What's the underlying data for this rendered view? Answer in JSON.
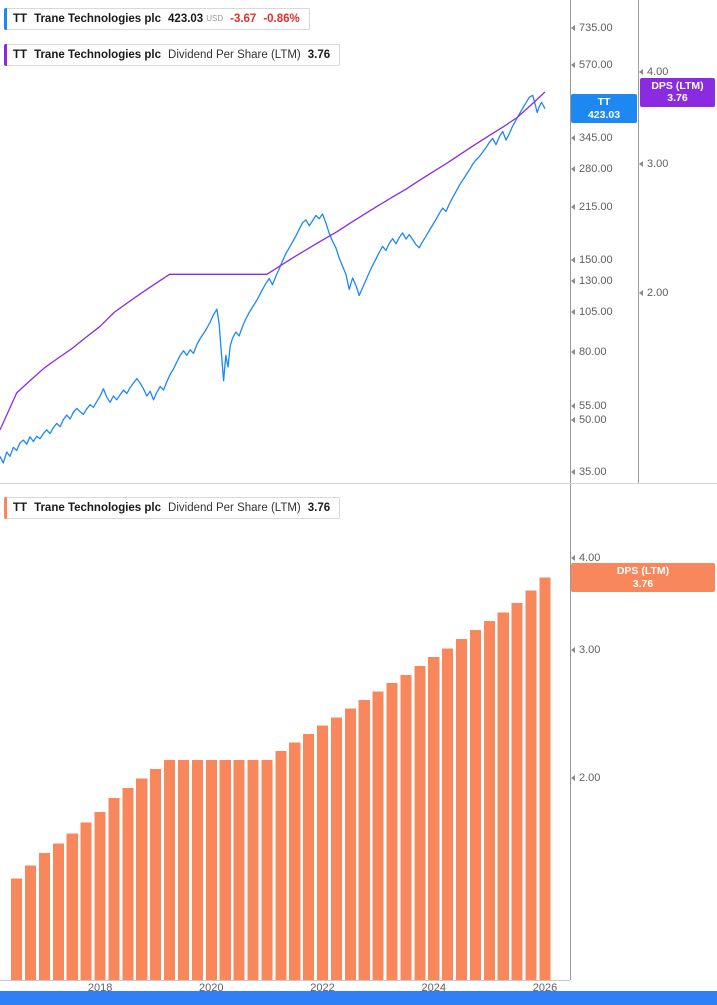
{
  "colors": {
    "price_blue": "#1E88F2",
    "dps_purple": "#8A2BE2",
    "dps_orange": "#F8875C",
    "change_red": "#E0302E",
    "timebar_blue": "#2F80F6",
    "axis_text_gray": "#5F5F5F"
  },
  "top_panel": {
    "legend_price": {
      "ticker": "TT",
      "name": "Trane Technologies plc",
      "price": "423.03",
      "currency": "USD",
      "change": "-3.67",
      "change_pct": "-0.86%"
    },
    "legend_dps": {
      "ticker": "TT",
      "name": "Trane Technologies plc",
      "metric": "Dividend Per Share (LTM)",
      "value": "3.76"
    },
    "price_badge": {
      "ticker": "TT",
      "value": "423.03"
    },
    "dps_badge": {
      "label": "DPS (LTM)",
      "value": "3.76"
    }
  },
  "bottom_panel": {
    "legend": {
      "ticker": "TT",
      "name": "Trane Technologies plc",
      "metric": "Dividend Per Share (LTM)",
      "value": "3.76"
    },
    "badge": {
      "label": "DPS (LTM)",
      "value": "3.76"
    }
  },
  "chart_data": [
    {
      "type": "line",
      "title": "TT Trane Technologies plc price with Dividend Per Share (LTM) overlay",
      "x_range": [
        2016.2,
        2026.45
      ],
      "y_scale": "log",
      "grid": false,
      "legend_position": "top-left",
      "last_values": {
        "price": 423.03,
        "dps": 3.76
      },
      "series": [
        {
          "id": "price",
          "name": "TT Trane Technologies plc Price (USD)",
          "color": "#1E88F2",
          "axis": {
            "min": 32.5,
            "max": 891,
            "ticks": [
              735,
              570,
              345,
              280,
              215,
              150,
              130,
              105,
              80,
              55,
              50,
              35
            ]
          },
          "points": [
            [
              2016.2,
              39.0
            ],
            [
              2016.26,
              37.3
            ],
            [
              2016.32,
              40.2
            ],
            [
              2016.38,
              39.0
            ],
            [
              2016.44,
              41.5
            ],
            [
              2016.5,
              40.6
            ],
            [
              2016.56,
              42.8
            ],
            [
              2016.62,
              43.6
            ],
            [
              2016.68,
              42.4
            ],
            [
              2016.74,
              44.6
            ],
            [
              2016.8,
              43.2
            ],
            [
              2016.86,
              44.8
            ],
            [
              2016.92,
              44.0
            ],
            [
              2016.98,
              45.6
            ],
            [
              2017.04,
              46.8
            ],
            [
              2017.1,
              45.6
            ],
            [
              2017.16,
              47.5
            ],
            [
              2017.22,
              48.9
            ],
            [
              2017.28,
              47.8
            ],
            [
              2017.34,
              50.2
            ],
            [
              2017.4,
              51.8
            ],
            [
              2017.46,
              50.4
            ],
            [
              2017.52,
              52.8
            ],
            [
              2017.58,
              54.2
            ],
            [
              2017.64,
              53.0
            ],
            [
              2017.7,
              52.0
            ],
            [
              2017.76,
              54.0
            ],
            [
              2017.82,
              55.6
            ],
            [
              2017.88,
              54.6
            ],
            [
              2017.94,
              56.8
            ],
            [
              2018.0,
              59.0
            ],
            [
              2018.06,
              62.0
            ],
            [
              2018.12,
              58.5
            ],
            [
              2018.18,
              56.5
            ],
            [
              2018.24,
              59.0
            ],
            [
              2018.3,
              57.5
            ],
            [
              2018.36,
              59.5
            ],
            [
              2018.42,
              61.5
            ],
            [
              2018.48,
              60.0
            ],
            [
              2018.54,
              62.5
            ],
            [
              2018.6,
              64.5
            ],
            [
              2018.66,
              66.5
            ],
            [
              2018.72,
              64.5
            ],
            [
              2018.78,
              62.0
            ],
            [
              2018.84,
              59.0
            ],
            [
              2018.9,
              61.0
            ],
            [
              2018.96,
              57.5
            ],
            [
              2019.02,
              60.5
            ],
            [
              2019.08,
              63.0
            ],
            [
              2019.14,
              61.5
            ],
            [
              2019.2,
              65.0
            ],
            [
              2019.26,
              68.5
            ],
            [
              2019.32,
              71.0
            ],
            [
              2019.38,
              74.5
            ],
            [
              2019.44,
              78.0
            ],
            [
              2019.5,
              80.5
            ],
            [
              2019.56,
              78.0
            ],
            [
              2019.62,
              81.0
            ],
            [
              2019.68,
              79.0
            ],
            [
              2019.74,
              84.0
            ],
            [
              2019.8,
              87.5
            ],
            [
              2019.86,
              90.5
            ],
            [
              2019.92,
              94.0
            ],
            [
              2019.98,
              98.0
            ],
            [
              2020.04,
              103.0
            ],
            [
              2020.1,
              107.0
            ],
            [
              2020.14,
              97.0
            ],
            [
              2020.18,
              80.0
            ],
            [
              2020.22,
              65.5
            ],
            [
              2020.26,
              78.0
            ],
            [
              2020.3,
              72.0
            ],
            [
              2020.34,
              83.0
            ],
            [
              2020.38,
              87.5
            ],
            [
              2020.44,
              91.5
            ],
            [
              2020.5,
              89.0
            ],
            [
              2020.56,
              95.0
            ],
            [
              2020.62,
              100.0
            ],
            [
              2020.68,
              104.5
            ],
            [
              2020.74,
              108.5
            ],
            [
              2020.8,
              112.5
            ],
            [
              2020.86,
              117.0
            ],
            [
              2020.92,
              122.5
            ],
            [
              2020.98,
              127.5
            ],
            [
              2021.04,
              132.0
            ],
            [
              2021.1,
              126.5
            ],
            [
              2021.16,
              134.0
            ],
            [
              2021.22,
              141.0
            ],
            [
              2021.28,
              149.0
            ],
            [
              2021.34,
              156.5
            ],
            [
              2021.4,
              163.0
            ],
            [
              2021.46,
              169.5
            ],
            [
              2021.52,
              176.5
            ],
            [
              2021.58,
              185.0
            ],
            [
              2021.64,
              193.5
            ],
            [
              2021.7,
              197.5
            ],
            [
              2021.76,
              189.5
            ],
            [
              2021.82,
              196.0
            ],
            [
              2021.88,
              203.5
            ],
            [
              2021.94,
              199.0
            ],
            [
              2022.0,
              205.5
            ],
            [
              2022.06,
              193.0
            ],
            [
              2022.12,
              180.0
            ],
            [
              2022.18,
              170.5
            ],
            [
              2022.24,
              163.0
            ],
            [
              2022.3,
              152.0
            ],
            [
              2022.36,
              143.5
            ],
            [
              2022.42,
              136.0
            ],
            [
              2022.48,
              122.5
            ],
            [
              2022.54,
              132.5
            ],
            [
              2022.6,
              126.0
            ],
            [
              2022.66,
              117.5
            ],
            [
              2022.72,
              124.0
            ],
            [
              2022.78,
              130.5
            ],
            [
              2022.84,
              137.5
            ],
            [
              2022.9,
              144.5
            ],
            [
              2022.96,
              151.0
            ],
            [
              2023.02,
              158.0
            ],
            [
              2023.08,
              164.5
            ],
            [
              2023.14,
              160.0
            ],
            [
              2023.2,
              168.0
            ],
            [
              2023.26,
              173.5
            ],
            [
              2023.32,
              167.5
            ],
            [
              2023.38,
              175.0
            ],
            [
              2023.44,
              180.5
            ],
            [
              2023.5,
              173.0
            ],
            [
              2023.56,
              178.5
            ],
            [
              2023.62,
              172.5
            ],
            [
              2023.68,
              166.5
            ],
            [
              2023.74,
              163.0
            ],
            [
              2023.8,
              170.0
            ],
            [
              2023.86,
              176.5
            ],
            [
              2023.92,
              183.5
            ],
            [
              2023.98,
              190.5
            ],
            [
              2024.04,
              198.0
            ],
            [
              2024.1,
              206.5
            ],
            [
              2024.16,
              214.0
            ],
            [
              2024.22,
              209.0
            ],
            [
              2024.28,
              220.0
            ],
            [
              2024.34,
              230.0
            ],
            [
              2024.4,
              239.5
            ],
            [
              2024.46,
              250.0
            ],
            [
              2024.52,
              259.0
            ],
            [
              2024.58,
              268.5
            ],
            [
              2024.64,
              278.0
            ],
            [
              2024.7,
              289.0
            ],
            [
              2024.76,
              297.5
            ],
            [
              2024.82,
              305.0
            ],
            [
              2024.88,
              314.0
            ],
            [
              2024.94,
              324.0
            ],
            [
              2025.0,
              336.0
            ],
            [
              2025.06,
              345.0
            ],
            [
              2025.12,
              330.5
            ],
            [
              2025.18,
              349.0
            ],
            [
              2025.24,
              362.0
            ],
            [
              2025.3,
              341.0
            ],
            [
              2025.36,
              357.0
            ],
            [
              2025.42,
              376.0
            ],
            [
              2025.48,
              392.0
            ],
            [
              2025.54,
              408.0
            ],
            [
              2025.6,
              424.0
            ],
            [
              2025.66,
              441.0
            ],
            [
              2025.72,
              457.5
            ],
            [
              2025.78,
              463.5
            ],
            [
              2025.82,
              438.0
            ],
            [
              2025.86,
              412.0
            ],
            [
              2025.9,
              430.0
            ],
            [
              2025.94,
              441.5
            ],
            [
              2026.0,
              423.03
            ]
          ]
        },
        {
          "id": "dps",
          "name": "Dividend Per Share (LTM)",
          "color": "#8A2BE2",
          "axis": {
            "min": 1.1,
            "max": 5.02,
            "ticks": [
              4,
              3,
              2
            ]
          },
          "points": [
            [
              2016.2,
              1.3
            ],
            [
              2016.5,
              1.46
            ],
            [
              2016.75,
              1.52
            ],
            [
              2017.0,
              1.58
            ],
            [
              2017.25,
              1.63
            ],
            [
              2017.5,
              1.68
            ],
            [
              2017.75,
              1.74
            ],
            [
              2018.0,
              1.8
            ],
            [
              2018.25,
              1.88
            ],
            [
              2018.5,
              1.94
            ],
            [
              2018.75,
              2.0
            ],
            [
              2019.0,
              2.06
            ],
            [
              2019.25,
              2.12
            ],
            [
              2019.5,
              2.12
            ],
            [
              2019.75,
              2.12
            ],
            [
              2020.0,
              2.12
            ],
            [
              2020.25,
              2.12
            ],
            [
              2020.5,
              2.12
            ],
            [
              2020.75,
              2.12
            ],
            [
              2021.0,
              2.12
            ],
            [
              2021.25,
              2.18
            ],
            [
              2021.5,
              2.24
            ],
            [
              2021.75,
              2.3
            ],
            [
              2022.0,
              2.36
            ],
            [
              2022.25,
              2.42
            ],
            [
              2022.5,
              2.49
            ],
            [
              2022.75,
              2.56
            ],
            [
              2023.0,
              2.63
            ],
            [
              2023.25,
              2.7
            ],
            [
              2023.5,
              2.77
            ],
            [
              2023.75,
              2.85
            ],
            [
              2024.0,
              2.93
            ],
            [
              2024.25,
              3.01
            ],
            [
              2024.5,
              3.1
            ],
            [
              2024.75,
              3.19
            ],
            [
              2025.0,
              3.28
            ],
            [
              2025.25,
              3.37
            ],
            [
              2025.5,
              3.47
            ],
            [
              2025.75,
              3.61
            ],
            [
              2026.0,
              3.76
            ]
          ]
        }
      ]
    },
    {
      "type": "bar",
      "title": "TT Trane Technologies plc Dividend Per Share (LTM)",
      "x_range": [
        2016.2,
        2026.45
      ],
      "y_scale": "log",
      "grid": false,
      "bar_color": "#F8875C",
      "bar_width_years": 0.2,
      "axis": {
        "min": 1.06,
        "max": 5.05,
        "ticks": [
          4,
          3,
          2
        ]
      },
      "x_ticks": [
        2018,
        2020,
        2022,
        2024,
        2026
      ],
      "last_value": 3.76,
      "points": [
        [
          2016.5,
          1.46
        ],
        [
          2016.75,
          1.52
        ],
        [
          2017.0,
          1.58
        ],
        [
          2017.25,
          1.63
        ],
        [
          2017.5,
          1.68
        ],
        [
          2017.75,
          1.74
        ],
        [
          2018.0,
          1.8
        ],
        [
          2018.25,
          1.88
        ],
        [
          2018.5,
          1.94
        ],
        [
          2018.75,
          2.0
        ],
        [
          2019.0,
          2.06
        ],
        [
          2019.25,
          2.12
        ],
        [
          2019.5,
          2.12
        ],
        [
          2019.75,
          2.12
        ],
        [
          2020.0,
          2.12
        ],
        [
          2020.25,
          2.12
        ],
        [
          2020.5,
          2.12
        ],
        [
          2020.75,
          2.12
        ],
        [
          2021.0,
          2.12
        ],
        [
          2021.25,
          2.18
        ],
        [
          2021.5,
          2.24
        ],
        [
          2021.75,
          2.3
        ],
        [
          2022.0,
          2.36
        ],
        [
          2022.25,
          2.42
        ],
        [
          2022.5,
          2.49
        ],
        [
          2022.75,
          2.56
        ],
        [
          2023.0,
          2.63
        ],
        [
          2023.25,
          2.7
        ],
        [
          2023.5,
          2.77
        ],
        [
          2023.75,
          2.85
        ],
        [
          2024.0,
          2.93
        ],
        [
          2024.25,
          3.01
        ],
        [
          2024.5,
          3.1
        ],
        [
          2024.75,
          3.19
        ],
        [
          2025.0,
          3.28
        ],
        [
          2025.25,
          3.37
        ],
        [
          2025.5,
          3.47
        ],
        [
          2025.75,
          3.61
        ],
        [
          2026.0,
          3.76
        ]
      ]
    }
  ]
}
